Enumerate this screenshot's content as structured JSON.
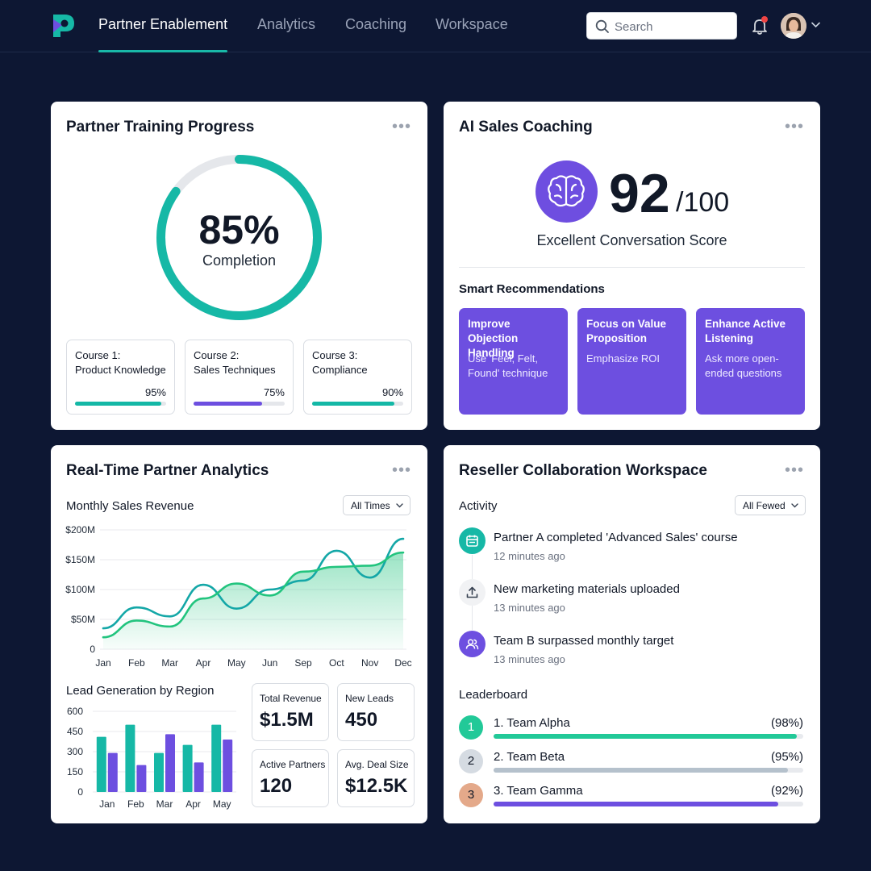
{
  "nav": {
    "tabs": [
      {
        "label": "Partner Enablement",
        "active": true
      },
      {
        "label": "Analytics",
        "active": false
      },
      {
        "label": "Coaching",
        "active": false
      },
      {
        "label": "Workspace",
        "active": false
      }
    ],
    "search_placeholder": "Search",
    "icons": {
      "logo": "brand-logo-icon",
      "search": "search-icon",
      "bell": "bell-icon",
      "caret": "chevron-down-icon"
    }
  },
  "training": {
    "title": "Partner Training Progress",
    "completion_value": "85%",
    "completion_fraction": 0.85,
    "completion_label": "Completion",
    "courses": [
      {
        "name": "Course 1:\nProduct Knowledge",
        "percent_label": "95%",
        "fraction": 0.95,
        "color": "#14b8a6"
      },
      {
        "name": "Course 2:\nSales Techniques",
        "percent_label": "75%",
        "fraction": 0.75,
        "color": "#6d4fe0"
      },
      {
        "name": "Course 3:\nCompliance",
        "percent_label": "90%",
        "fraction": 0.9,
        "color": "#14b8a6"
      }
    ]
  },
  "coaching": {
    "title": "AI Sales Coaching",
    "score": "92",
    "score_suffix": "/100",
    "score_label": "Excellent Conversation Score",
    "recommendations_title": "Smart Recommendations",
    "recommendations": [
      {
        "title": "Improve Objection Handling",
        "desc": "Use 'Feel, Felt, Found' technique"
      },
      {
        "title": "Focus on Value Proposition",
        "desc": "Emphasize ROI"
      },
      {
        "title": "Enhance Active Listening",
        "desc": "Ask more open-ended questions"
      }
    ],
    "icon": "brain-icon"
  },
  "analytics": {
    "title": "Real-Time Partner Analytics",
    "revenue_title": "Monthly Sales Revenue",
    "revenue_filter": "All Times",
    "leads_title": "Lead Generation by Region",
    "stats": [
      {
        "label": "Total Revenue",
        "value": "$1.5M"
      },
      {
        "label": "New Leads",
        "value": "450"
      },
      {
        "label": "Active Partners",
        "value": "120"
      },
      {
        "label": "Avg. Deal Size",
        "value": "$12.5K"
      }
    ]
  },
  "chart_data": [
    {
      "type": "line",
      "title": "Monthly Sales Revenue",
      "x": [
        "Jan",
        "Feb",
        "Mar",
        "Apr",
        "May",
        "Jun",
        "Sep",
        "Oct",
        "Nov",
        "Dec"
      ],
      "y_ticks": [
        "0",
        "$50M",
        "$100M",
        "$150M",
        "$200M"
      ],
      "ylim": [
        0,
        200
      ],
      "series": [
        {
          "color": "#14a7a7",
          "values": [
            35,
            70,
            55,
            108,
            68,
            100,
            115,
            165,
            120,
            185
          ]
        },
        {
          "color": "#22c47e",
          "values": [
            20,
            48,
            38,
            85,
            110,
            90,
            130,
            138,
            140,
            162
          ],
          "fill": true
        }
      ],
      "grid": true
    },
    {
      "type": "bar",
      "title": "Lead Generation by Region",
      "categories": [
        "Jan",
        "Feb",
        "Mar",
        "Apr",
        "May"
      ],
      "y_ticks": [
        "0",
        "150",
        "300",
        "450",
        "600"
      ],
      "ylim": [
        0,
        600
      ],
      "series": [
        {
          "color": "#16b8a6",
          "values": [
            410,
            500,
            290,
            350,
            500
          ]
        },
        {
          "color": "#6d4fe0",
          "values": [
            290,
            200,
            430,
            220,
            390
          ]
        }
      ],
      "grid": true
    }
  ],
  "workspace": {
    "title": "Reseller Collaboration Workspace",
    "activity_title": "Activity",
    "activity_filter": "All Fewed",
    "activities": [
      {
        "text": "Partner A completed 'Advanced Sales' course",
        "time": "12 minutes ago",
        "icon": "calendar-icon",
        "color": "#16b8a6"
      },
      {
        "text": "New marketing materials uploaded",
        "time": "13 minutes ago",
        "icon": "upload-icon",
        "color": "#f1f2f4"
      },
      {
        "text": "Team B surpassed monthly target",
        "time": "13 minutes ago",
        "icon": "users-icon",
        "color": "#6d4fe0"
      }
    ],
    "leaderboard_title": "Leaderboard",
    "leaderboard": [
      {
        "rank": "1",
        "name": "1. Team Alpha",
        "percent_label": "(98%)",
        "fraction": 0.98,
        "bar_color": "#22c998",
        "badge_color": "#22c998",
        "badge_text_color": "#ffffff"
      },
      {
        "rank": "2",
        "name": "2. Team Beta",
        "percent_label": "(95%)",
        "fraction": 0.95,
        "bar_color": "#b5c1cc",
        "badge_color": "#d5dbe2",
        "badge_text_color": "#111827"
      },
      {
        "rank": "3",
        "name": "3. Team Gamma",
        "percent_label": "(92%)",
        "fraction": 0.92,
        "bar_color": "#6d4fe0",
        "badge_color": "#e4a98a",
        "badge_text_color": "#111827"
      }
    ]
  }
}
